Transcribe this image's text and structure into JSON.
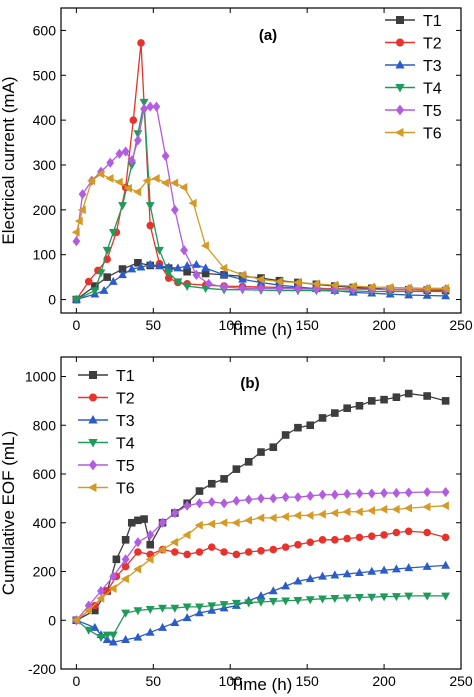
{
  "chart_data": [
    {
      "type": "line",
      "panel_label": "(a)",
      "xlabel": "Time (h)",
      "ylabel": "Electrical current (mA)",
      "xlim": [
        -10,
        250
      ],
      "ylim": [
        -30,
        650
      ],
      "xticks": [
        0,
        50,
        100,
        150,
        200,
        250
      ],
      "yticks": [
        0,
        100,
        200,
        300,
        400,
        500,
        600
      ],
      "legend_position": "top-right",
      "series": [
        {
          "name": "T1",
          "color": "#3d3d3d",
          "marker": "square",
          "x": [
            0,
            12,
            20,
            30,
            40,
            48,
            60,
            72,
            84,
            96,
            108,
            120,
            132,
            144,
            156,
            168,
            180,
            192,
            204,
            216,
            228,
            240
          ],
          "y": [
            0,
            30,
            50,
            68,
            82,
            76,
            70,
            62,
            58,
            55,
            52,
            48,
            42,
            38,
            34,
            30,
            27,
            25,
            23,
            22,
            21,
            20
          ]
        },
        {
          "name": "T2",
          "color": "#e8322b",
          "marker": "circle",
          "x": [
            0,
            8,
            14,
            20,
            26,
            32,
            37,
            42,
            48,
            54,
            60,
            66,
            72,
            84,
            96,
            108,
            120,
            132,
            144,
            156,
            168,
            180,
            192,
            204,
            216,
            228,
            240
          ],
          "y": [
            0,
            40,
            65,
            90,
            150,
            250,
            400,
            572,
            165,
            80,
            48,
            38,
            35,
            32,
            30,
            29,
            28,
            27,
            26,
            25,
            24,
            24,
            23,
            22,
            22,
            21,
            21
          ]
        },
        {
          "name": "T3",
          "color": "#2c5cc8",
          "marker": "triangle-up",
          "x": [
            0,
            12,
            18,
            24,
            30,
            36,
            42,
            48,
            54,
            60,
            66,
            72,
            78,
            84,
            96,
            108,
            120,
            132,
            144,
            156,
            168,
            180,
            192,
            204,
            216,
            228,
            240
          ],
          "y": [
            0,
            12,
            20,
            40,
            55,
            68,
            72,
            78,
            75,
            72,
            70,
            75,
            78,
            70,
            55,
            45,
            38,
            32,
            28,
            24,
            20,
            16,
            14,
            12,
            10,
            9,
            8
          ]
        },
        {
          "name": "T4",
          "color": "#1f9a5a",
          "marker": "triangle-down",
          "x": [
            0,
            12,
            16,
            20,
            24,
            30,
            36,
            40,
            44,
            48,
            54,
            60,
            66,
            72,
            84,
            96,
            108,
            120,
            132,
            144,
            156,
            168,
            180,
            192,
            204,
            216,
            228,
            240
          ],
          "y": [
            0,
            20,
            60,
            110,
            150,
            210,
            300,
            370,
            440,
            210,
            110,
            60,
            40,
            30,
            25,
            22,
            22,
            21,
            20,
            20,
            20,
            19,
            19,
            18,
            18,
            18,
            18,
            18
          ]
        },
        {
          "name": "T5",
          "color": "#b25ce0",
          "marker": "diamond",
          "x": [
            0,
            4,
            10,
            16,
            22,
            28,
            32,
            36,
            40,
            44,
            48,
            52,
            58,
            64,
            70,
            78,
            86,
            96,
            108,
            120,
            132,
            144,
            156,
            168,
            180,
            192,
            204,
            216,
            228,
            240
          ],
          "y": [
            130,
            235,
            265,
            285,
            305,
            325,
            330,
            310,
            355,
            425,
            430,
            430,
            320,
            200,
            110,
            55,
            35,
            28,
            25,
            25,
            24,
            24,
            23,
            23,
            23,
            23,
            23,
            23,
            23,
            23
          ]
        },
        {
          "name": "T6",
          "color": "#d59a26",
          "marker": "triangle-left",
          "x": [
            0,
            2,
            4,
            10,
            16,
            22,
            28,
            34,
            40,
            46,
            52,
            58,
            64,
            70,
            76,
            84,
            96,
            108,
            120,
            132,
            144,
            156,
            168,
            180,
            192,
            204,
            216,
            228,
            240
          ],
          "y": [
            150,
            175,
            200,
            265,
            280,
            270,
            262,
            248,
            240,
            265,
            270,
            260,
            260,
            250,
            215,
            120,
            70,
            55,
            45,
            40,
            38,
            35,
            32,
            30,
            28,
            27,
            26,
            25,
            25
          ]
        }
      ]
    },
    {
      "type": "line",
      "panel_label": "(b)",
      "xlabel": "Time (h)",
      "ylabel": "Cumulative EOF (mL)",
      "xlim": [
        -10,
        250
      ],
      "ylim": [
        -200,
        1080
      ],
      "xticks": [
        0,
        50,
        100,
        150,
        200,
        250
      ],
      "yticks": [
        -200,
        0,
        200,
        400,
        600,
        800,
        1000
      ],
      "legend_position": "top-left",
      "series": [
        {
          "name": "T1",
          "color": "#3d3d3d",
          "marker": "square",
          "x": [
            0,
            12,
            20,
            26,
            32,
            36,
            40,
            44,
            48,
            56,
            64,
            72,
            80,
            88,
            96,
            104,
            112,
            120,
            128,
            136,
            144,
            152,
            160,
            168,
            176,
            184,
            192,
            200,
            208,
            216,
            228,
            240
          ],
          "y": [
            0,
            40,
            120,
            250,
            330,
            400,
            410,
            415,
            310,
            400,
            440,
            480,
            530,
            560,
            580,
            620,
            650,
            690,
            710,
            760,
            790,
            800,
            830,
            850,
            870,
            880,
            900,
            905,
            915,
            930,
            920,
            900
          ]
        },
        {
          "name": "T2",
          "color": "#e8322b",
          "marker": "circle",
          "x": [
            0,
            12,
            20,
            26,
            32,
            40,
            48,
            56,
            64,
            72,
            80,
            88,
            96,
            104,
            112,
            120,
            128,
            136,
            144,
            152,
            160,
            168,
            176,
            184,
            192,
            200,
            208,
            216,
            228,
            240
          ],
          "y": [
            0,
            60,
            120,
            180,
            220,
            280,
            270,
            290,
            280,
            270,
            280,
            300,
            280,
            270,
            280,
            285,
            290,
            300,
            310,
            320,
            330,
            330,
            335,
            340,
            345,
            350,
            360,
            365,
            360,
            340
          ]
        },
        {
          "name": "T3",
          "color": "#2c5cc8",
          "marker": "triangle-up",
          "x": [
            0,
            12,
            16,
            20,
            24,
            32,
            40,
            48,
            56,
            64,
            72,
            80,
            88,
            96,
            104,
            112,
            120,
            128,
            136,
            144,
            152,
            160,
            168,
            176,
            184,
            192,
            200,
            208,
            216,
            228,
            240
          ],
          "y": [
            0,
            -30,
            -60,
            -80,
            -90,
            -80,
            -70,
            -50,
            -30,
            -10,
            10,
            30,
            40,
            50,
            60,
            80,
            100,
            120,
            140,
            160,
            170,
            180,
            185,
            190,
            195,
            200,
            205,
            210,
            215,
            220,
            225
          ]
        },
        {
          "name": "T4",
          "color": "#1f9a5a",
          "marker": "triangle-down",
          "x": [
            0,
            8,
            16,
            20,
            24,
            32,
            40,
            48,
            56,
            64,
            72,
            80,
            88,
            96,
            104,
            112,
            120,
            128,
            136,
            144,
            152,
            160,
            168,
            176,
            184,
            192,
            200,
            208,
            216,
            228,
            240
          ],
          "y": [
            0,
            -40,
            -70,
            -60,
            -60,
            30,
            40,
            45,
            50,
            50,
            55,
            55,
            60,
            65,
            70,
            72,
            75,
            78,
            80,
            82,
            85,
            88,
            90,
            92,
            94,
            95,
            97,
            98,
            100,
            100,
            100
          ]
        },
        {
          "name": "T5",
          "color": "#b25ce0",
          "marker": "diamond",
          "x": [
            0,
            8,
            16,
            24,
            32,
            40,
            48,
            56,
            64,
            72,
            80,
            88,
            96,
            104,
            112,
            120,
            128,
            136,
            144,
            152,
            160,
            168,
            176,
            184,
            192,
            200,
            208,
            216,
            228,
            240
          ],
          "y": [
            0,
            60,
            120,
            180,
            250,
            320,
            350,
            400,
            440,
            470,
            480,
            485,
            480,
            490,
            495,
            500,
            500,
            505,
            505,
            510,
            515,
            515,
            518,
            520,
            520,
            522,
            522,
            524,
            526,
            526
          ]
        },
        {
          "name": "T6",
          "color": "#d59a26",
          "marker": "triangle-left",
          "x": [
            0,
            8,
            16,
            24,
            32,
            40,
            48,
            56,
            64,
            72,
            80,
            88,
            96,
            104,
            112,
            120,
            128,
            136,
            144,
            152,
            160,
            168,
            176,
            184,
            192,
            200,
            208,
            216,
            228,
            240
          ],
          "y": [
            0,
            40,
            90,
            130,
            170,
            210,
            250,
            290,
            320,
            350,
            390,
            395,
            400,
            400,
            410,
            420,
            420,
            425,
            430,
            430,
            435,
            440,
            445,
            445,
            450,
            455,
            455,
            460,
            465,
            470
          ]
        }
      ]
    }
  ]
}
